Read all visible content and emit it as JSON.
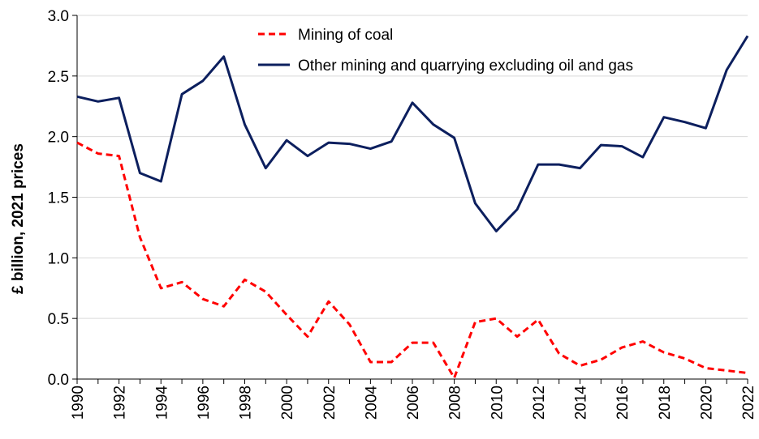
{
  "chart_data": {
    "type": "line",
    "title": "",
    "xlabel": "",
    "ylabel": "£ billion, 2021 prices",
    "x": [
      1990,
      1991,
      1992,
      1993,
      1994,
      1995,
      1996,
      1997,
      1998,
      1999,
      2000,
      2001,
      2002,
      2003,
      2004,
      2005,
      2006,
      2007,
      2008,
      2009,
      2010,
      2011,
      2012,
      2013,
      2014,
      2015,
      2016,
      2017,
      2018,
      2019,
      2020,
      2021,
      2022
    ],
    "xlim": [
      1990,
      2022
    ],
    "x_tick_labels": [
      "1990",
      "1992",
      "1994",
      "1996",
      "1998",
      "2000",
      "2002",
      "2004",
      "2006",
      "2008",
      "2010",
      "2012",
      "2014",
      "2016",
      "2018",
      "2020",
      "2022"
    ],
    "ylim": [
      0,
      3.0
    ],
    "y_tick_labels": [
      "0.0",
      "0.5",
      "1.0",
      "1.5",
      "2.0",
      "2.5",
      "3.0"
    ],
    "grid": true,
    "legend_position": "top",
    "series": [
      {
        "name": "Mining of coal",
        "color": "#ff0000",
        "style": "dashed",
        "values": [
          1.95,
          1.86,
          1.84,
          1.17,
          0.75,
          0.8,
          0.66,
          0.6,
          0.82,
          0.72,
          0.53,
          0.35,
          0.64,
          0.45,
          0.14,
          0.14,
          0.3,
          0.3,
          0.01,
          0.47,
          0.5,
          0.35,
          0.49,
          0.21,
          0.11,
          0.16,
          0.26,
          0.31,
          0.22,
          0.17,
          0.09,
          0.07,
          0.05
        ]
      },
      {
        "name": "Other mining and quarrying excluding oil and gas",
        "color": "#0c1f5e",
        "style": "solid",
        "values": [
          2.33,
          2.29,
          2.32,
          1.7,
          1.63,
          2.35,
          2.46,
          2.66,
          2.1,
          1.74,
          1.97,
          1.84,
          1.95,
          1.94,
          1.9,
          1.96,
          2.28,
          2.1,
          1.99,
          1.45,
          1.22,
          1.4,
          1.77,
          1.77,
          1.74,
          1.93,
          1.92,
          1.83,
          2.16,
          2.12,
          2.07,
          2.55,
          2.83
        ]
      }
    ]
  }
}
